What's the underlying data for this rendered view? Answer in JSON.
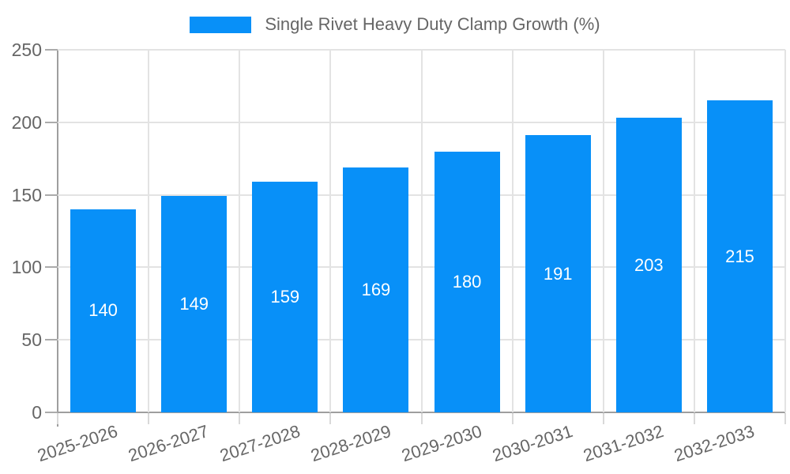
{
  "legend": {
    "label": "Single Rivet Heavy Duty Clamp Growth (%)"
  },
  "chart_data": {
    "type": "bar",
    "title": "Single Rivet Heavy Duty Clamp Growth (%)",
    "categories": [
      "2025-2026",
      "2026-2027",
      "2027-2028",
      "2028-2029",
      "2029-2030",
      "2030-2031",
      "2031-2032",
      "2032-2033"
    ],
    "values": [
      140,
      149,
      159,
      169,
      180,
      191,
      203,
      215
    ],
    "value_labels": [
      "140",
      "149",
      "159",
      "169",
      "180",
      "191",
      "203",
      "215"
    ],
    "xlabel": "",
    "ylabel": "",
    "ylim": [
      0,
      250
    ],
    "yticks": [
      0,
      50,
      100,
      150,
      200,
      250
    ],
    "grid": true,
    "legend_position": "top-center",
    "colors": {
      "bar": "#0890F8",
      "grid": "#e3e3e3",
      "axis": "#9e9e9e",
      "tick": "#ababab",
      "tick_light": "#d9d9d9",
      "text": "#666666",
      "value_label": "#ffffff",
      "background": "#ffffff"
    }
  }
}
